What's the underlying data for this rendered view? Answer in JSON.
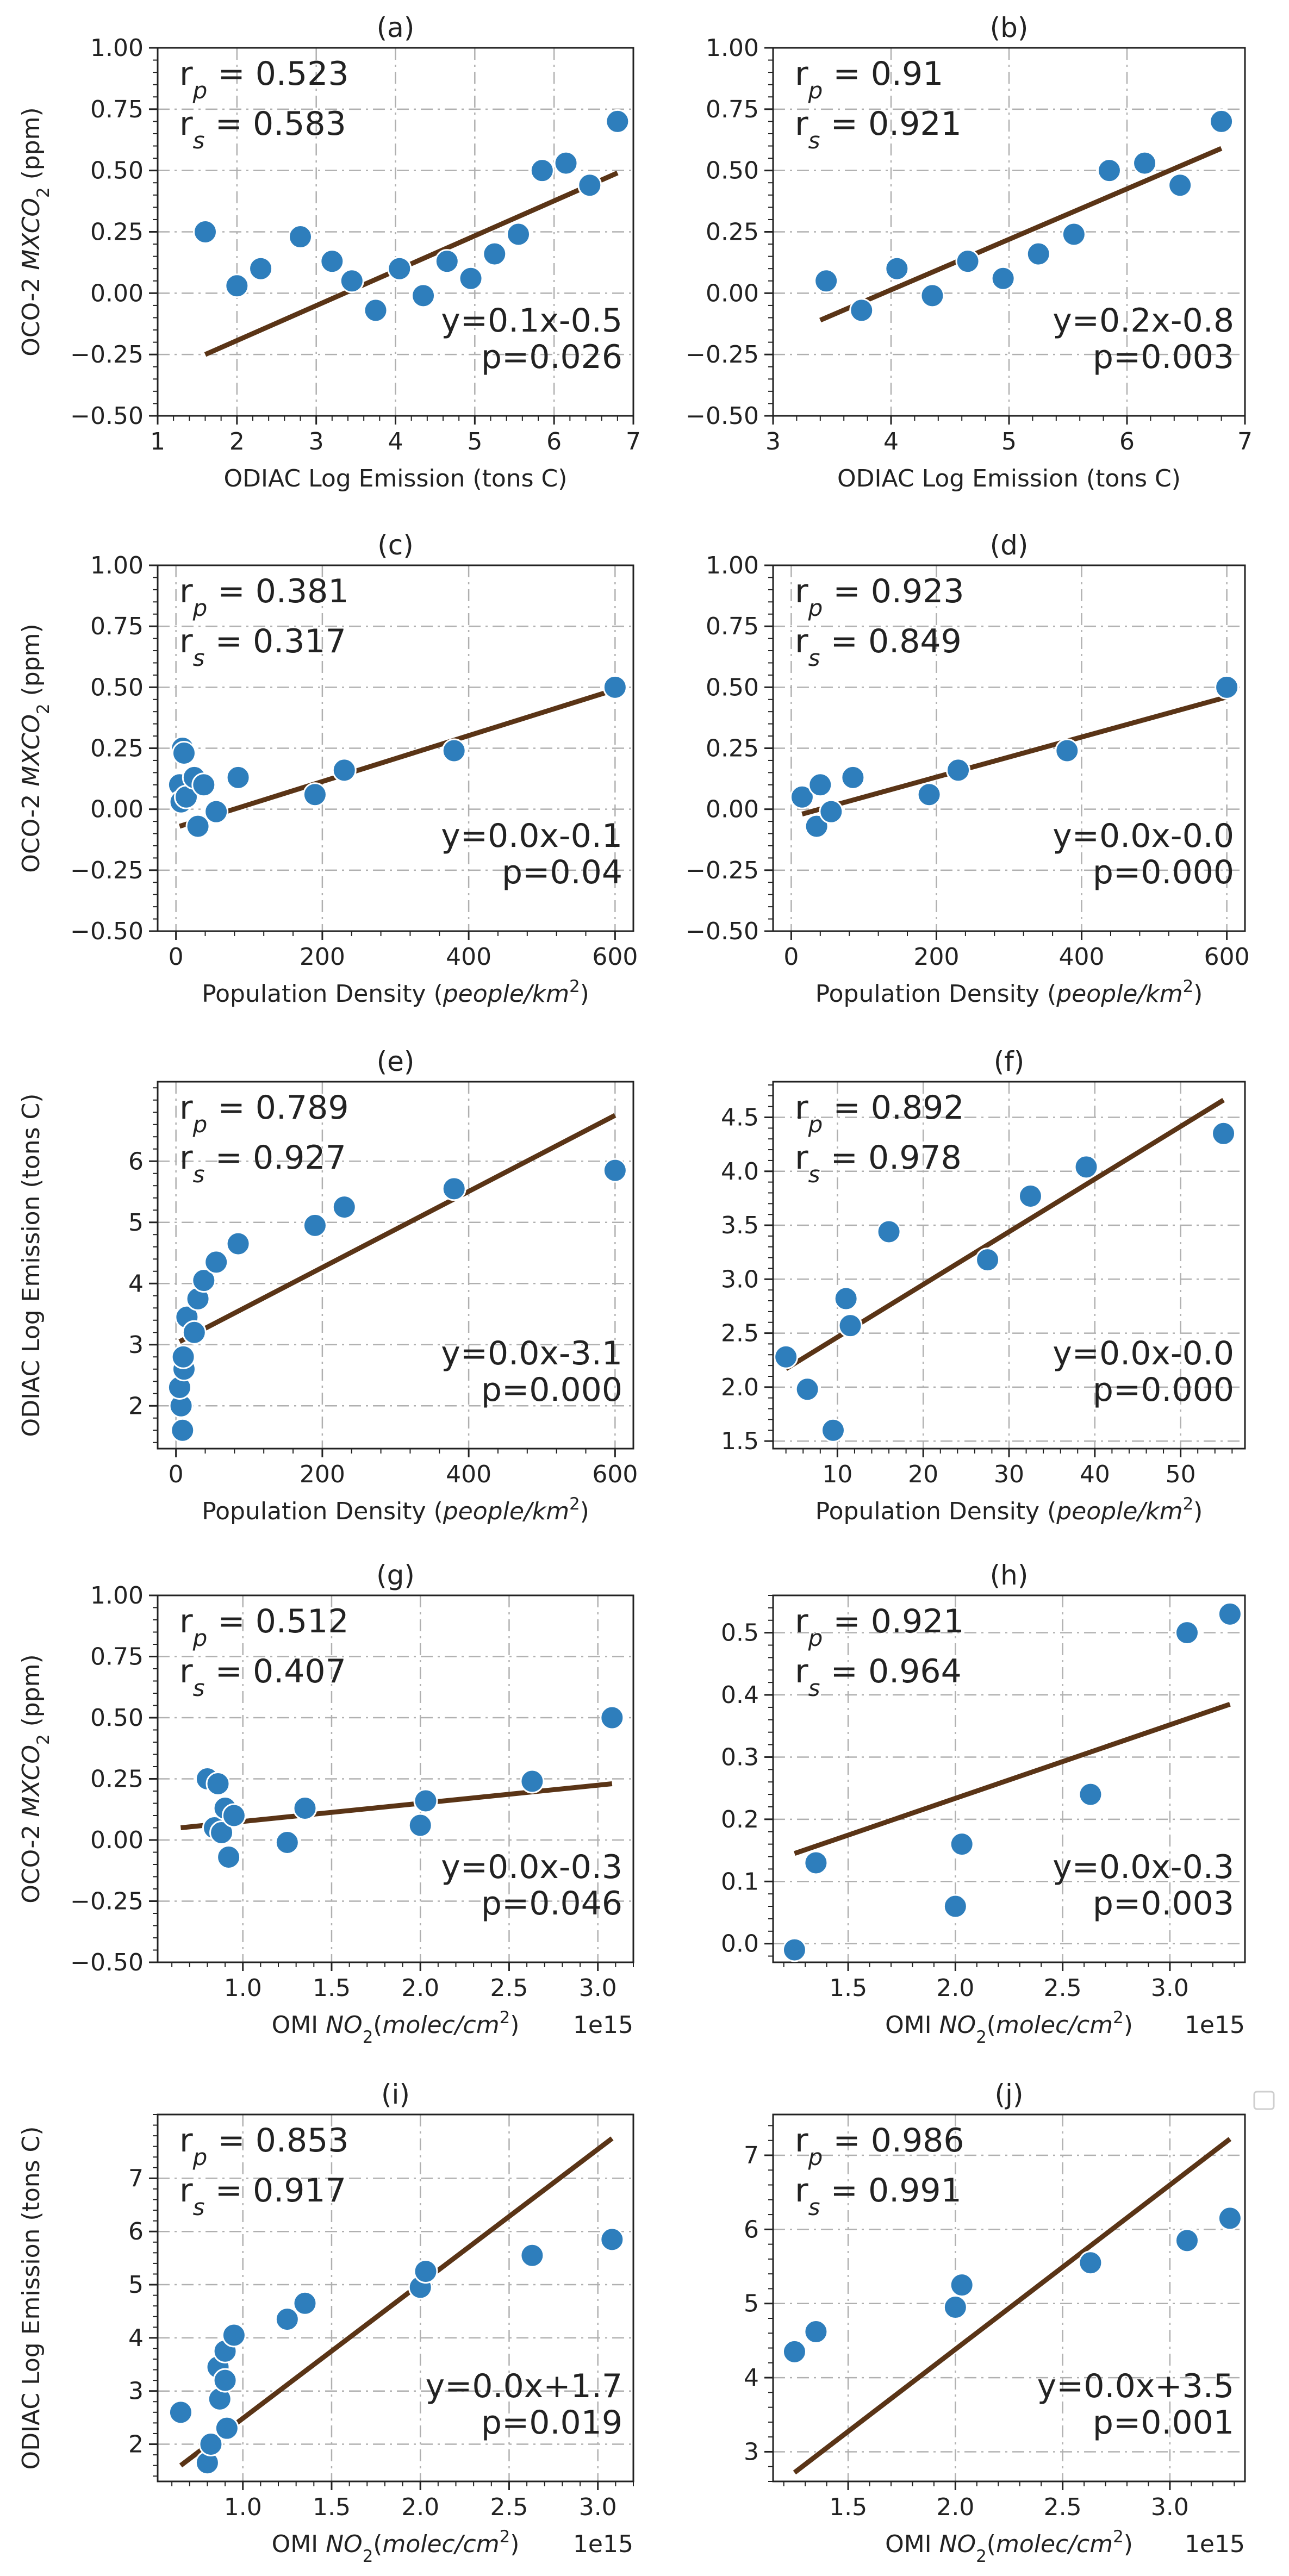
{
  "figure": {
    "legend_box": true
  },
  "chart_data": [
    {
      "panel": "(a)",
      "type": "scatter",
      "xlabel": "ODIAC Log Emission (tons C)",
      "ylabel": "OCO-2 MXCO2 (ppm)",
      "xlim": [
        1,
        7
      ],
      "ylim": [
        -0.5,
        1.0
      ],
      "xticks": [
        1,
        2,
        3,
        4,
        5,
        6,
        7
      ],
      "xticklabels": [
        "1",
        "2",
        "3",
        "4",
        "5",
        "6",
        "7"
      ],
      "yticks": [
        -0.5,
        -0.25,
        0,
        0.25,
        0.5,
        0.75,
        1.0
      ],
      "yticklabels": [
        "−0.50",
        "−0.25",
        "0.00",
        "0.25",
        "0.50",
        "0.75",
        "1.00"
      ],
      "x_exponent": "",
      "points": [
        [
          1.6,
          0.25
        ],
        [
          2.0,
          0.03
        ],
        [
          2.3,
          0.1
        ],
        [
          2.8,
          0.23
        ],
        [
          3.2,
          0.13
        ],
        [
          3.45,
          0.05
        ],
        [
          3.75,
          -0.07
        ],
        [
          4.05,
          0.1
        ],
        [
          4.35,
          -0.01
        ],
        [
          4.65,
          0.13
        ],
        [
          4.95,
          0.06
        ],
        [
          5.25,
          0.16
        ],
        [
          5.55,
          0.24
        ],
        [
          5.85,
          0.5
        ],
        [
          6.15,
          0.53
        ],
        [
          6.45,
          0.44
        ],
        [
          6.8,
          0.7
        ]
      ],
      "fit": [
        [
          1.6,
          -0.25
        ],
        [
          6.8,
          0.49
        ]
      ],
      "stats": {
        "rp": "r_p = 0.523",
        "rs": "r_s = 0.583"
      },
      "equation": {
        "eq": "y=0.1x-0.5",
        "p": "p=0.026"
      }
    },
    {
      "panel": "(b)",
      "type": "scatter",
      "xlabel": "ODIAC Log Emission (tons C)",
      "ylabel": "",
      "xlim": [
        3,
        7
      ],
      "ylim": [
        -0.5,
        1.0
      ],
      "xticks": [
        3,
        4,
        5,
        6,
        7
      ],
      "xticklabels": [
        "3",
        "4",
        "5",
        "6",
        "7"
      ],
      "yticks": [
        -0.5,
        -0.25,
        0,
        0.25,
        0.5,
        0.75,
        1.0
      ],
      "yticklabels": [
        "−0.50",
        "−0.25",
        "0.00",
        "0.25",
        "0.50",
        "0.75",
        "1.00"
      ],
      "x_exponent": "",
      "points": [
        [
          3.45,
          0.05
        ],
        [
          3.75,
          -0.07
        ],
        [
          4.05,
          0.1
        ],
        [
          4.35,
          -0.01
        ],
        [
          4.65,
          0.13
        ],
        [
          4.95,
          0.06
        ],
        [
          5.25,
          0.16
        ],
        [
          5.55,
          0.24
        ],
        [
          5.85,
          0.5
        ],
        [
          6.15,
          0.53
        ],
        [
          6.45,
          0.44
        ],
        [
          6.8,
          0.7
        ]
      ],
      "fit": [
        [
          3.4,
          -0.11
        ],
        [
          6.8,
          0.59
        ]
      ],
      "stats": {
        "rp": "r_p = 0.91",
        "rs": "r_s = 0.921"
      },
      "equation": {
        "eq": "y=0.2x-0.8",
        "p": "p=0.003"
      }
    },
    {
      "panel": "(c)",
      "type": "scatter",
      "xlabel": "Population Density (people/km²)",
      "ylabel": "OCO-2 MXCO2 (ppm)",
      "xlim": [
        -25,
        625
      ],
      "ylim": [
        -0.5,
        1.0
      ],
      "xticks": [
        0,
        200,
        400,
        600
      ],
      "xticklabels": [
        "0",
        "200",
        "400",
        "600"
      ],
      "yticks": [
        -0.5,
        -0.25,
        0,
        0.25,
        0.5,
        0.75,
        1.0
      ],
      "yticklabels": [
        "−0.50",
        "−0.25",
        "0.00",
        "0.25",
        "0.50",
        "0.75",
        "1.00"
      ],
      "x_exponent": "",
      "points": [
        [
          5,
          0.1
        ],
        [
          7,
          0.03
        ],
        [
          9,
          0.25
        ],
        [
          11,
          0.23
        ],
        [
          14,
          0.05
        ],
        [
          25,
          0.13
        ],
        [
          30,
          -0.07
        ],
        [
          38,
          0.1
        ],
        [
          55,
          -0.01
        ],
        [
          85,
          0.13
        ],
        [
          190,
          0.06
        ],
        [
          230,
          0.16
        ],
        [
          380,
          0.24
        ],
        [
          600,
          0.5
        ]
      ],
      "fit": [
        [
          5,
          -0.07
        ],
        [
          600,
          0.49
        ]
      ],
      "stats": {
        "rp": "r_p = 0.381",
        "rs": "r_s = 0.317"
      },
      "equation": {
        "eq": "y=0.0x-0.1",
        "p": "p=0.04"
      }
    },
    {
      "panel": "(d)",
      "type": "scatter",
      "xlabel": "Population Density (people/km²)",
      "ylabel": "",
      "xlim": [
        -25,
        625
      ],
      "ylim": [
        -0.5,
        1.0
      ],
      "xticks": [
        0,
        200,
        400,
        600
      ],
      "xticklabels": [
        "0",
        "200",
        "400",
        "600"
      ],
      "yticks": [
        -0.5,
        -0.25,
        0,
        0.25,
        0.5,
        0.75,
        1.0
      ],
      "yticklabels": [
        "−0.50",
        "−0.25",
        "0.00",
        "0.25",
        "0.50",
        "0.75",
        "1.00"
      ],
      "x_exponent": "",
      "points": [
        [
          15,
          0.05
        ],
        [
          35,
          -0.07
        ],
        [
          40,
          0.1
        ],
        [
          55,
          -0.01
        ],
        [
          85,
          0.13
        ],
        [
          190,
          0.06
        ],
        [
          230,
          0.16
        ],
        [
          380,
          0.24
        ],
        [
          600,
          0.5
        ]
      ],
      "fit": [
        [
          15,
          -0.02
        ],
        [
          600,
          0.46
        ]
      ],
      "stats": {
        "rp": "r_p = 0.923",
        "rs": "r_s = 0.849"
      },
      "equation": {
        "eq": "y=0.0x-0.0",
        "p": "p=0.000"
      }
    },
    {
      "panel": "(e)",
      "type": "scatter",
      "xlabel": "Population Density (people/km²)",
      "ylabel": "ODIAC Log Emission (tons C)",
      "xlim": [
        -25,
        625
      ],
      "ylim": [
        1.3,
        7.3
      ],
      "xticks": [
        0,
        200,
        400,
        600
      ],
      "xticklabels": [
        "0",
        "200",
        "400",
        "600"
      ],
      "yticks": [
        2,
        3,
        4,
        5,
        6
      ],
      "yticklabels": [
        "2",
        "3",
        "4",
        "5",
        "6"
      ],
      "x_exponent": "",
      "points": [
        [
          9,
          1.6
        ],
        [
          7,
          2.0
        ],
        [
          5,
          2.3
        ],
        [
          11,
          2.6
        ],
        [
          10,
          2.8
        ],
        [
          15,
          3.45
        ],
        [
          25,
          3.2
        ],
        [
          30,
          3.75
        ],
        [
          38,
          4.05
        ],
        [
          55,
          4.35
        ],
        [
          85,
          4.65
        ],
        [
          190,
          4.95
        ],
        [
          230,
          5.25
        ],
        [
          380,
          5.55
        ],
        [
          600,
          5.85
        ]
      ],
      "fit": [
        [
          5,
          3.05
        ],
        [
          600,
          6.75
        ]
      ],
      "stats": {
        "rp": "r_p = 0.789",
        "rs": "r_s = 0.927"
      },
      "equation": {
        "eq": "y=0.0x-3.1",
        "p": "p=0.000"
      }
    },
    {
      "panel": "(f)",
      "type": "scatter",
      "xlabel": "Population Density (people/km²)",
      "ylabel": "",
      "xlim": [
        2.5,
        57.5
      ],
      "ylim": [
        1.43,
        4.83
      ],
      "xticks": [
        10,
        20,
        30,
        40,
        50
      ],
      "xticklabels": [
        "10",
        "20",
        "30",
        "40",
        "50"
      ],
      "yticks": [
        1.5,
        2.0,
        2.5,
        3.0,
        3.5,
        4.0,
        4.5
      ],
      "yticklabels": [
        "1.5",
        "2.0",
        "2.5",
        "3.0",
        "3.5",
        "4.0",
        "4.5"
      ],
      "x_exponent": "",
      "points": [
        [
          4,
          2.28
        ],
        [
          6.5,
          1.98
        ],
        [
          9.5,
          1.6
        ],
        [
          11,
          2.82
        ],
        [
          11.5,
          2.57
        ],
        [
          16,
          3.44
        ],
        [
          27.5,
          3.18
        ],
        [
          32.5,
          3.77
        ],
        [
          39,
          4.04
        ],
        [
          55,
          4.35
        ]
      ],
      "fit": [
        [
          4,
          2.17
        ],
        [
          55,
          4.66
        ]
      ],
      "stats": {
        "rp": "r_p = 0.892",
        "rs": "r_s = 0.978"
      },
      "equation": {
        "eq": "y=0.0x-0.0",
        "p": "p=0.000"
      }
    },
    {
      "panel": "(g)",
      "type": "scatter",
      "xlabel": "OMI NO2(molec/cm²)",
      "ylabel": "OCO-2 MXCO2 (ppm)",
      "xlim": [
        0.52,
        3.2
      ],
      "ylim": [
        -0.5,
        1.0
      ],
      "xticks": [
        1.0,
        1.5,
        2.0,
        2.5,
        3.0
      ],
      "xticklabels": [
        "1.0",
        "1.5",
        "2.0",
        "2.5",
        "3.0"
      ],
      "yticks": [
        -0.5,
        -0.25,
        0,
        0.25,
        0.5,
        0.75,
        1.0
      ],
      "yticklabels": [
        "−0.50",
        "−0.25",
        "0.00",
        "0.25",
        "0.50",
        "0.75",
        "1.00"
      ],
      "x_exponent": "1e15",
      "points": [
        [
          0.8,
          0.25
        ],
        [
          0.84,
          0.05
        ],
        [
          0.86,
          0.23
        ],
        [
          0.88,
          0.03
        ],
        [
          0.9,
          0.13
        ],
        [
          0.92,
          -0.07
        ],
        [
          0.95,
          0.1
        ],
        [
          1.25,
          -0.01
        ],
        [
          1.35,
          0.13
        ],
        [
          2.0,
          0.06
        ],
        [
          2.03,
          0.16
        ],
        [
          2.63,
          0.24
        ],
        [
          3.08,
          0.5
        ]
      ],
      "fit": [
        [
          0.65,
          0.05
        ],
        [
          3.08,
          0.23
        ]
      ],
      "stats": {
        "rp": "r_p = 0.512",
        "rs": "r_s = 0.407"
      },
      "equation": {
        "eq": "y=0.0x-0.3",
        "p": "p=0.046"
      }
    },
    {
      "panel": "(h)",
      "type": "scatter",
      "xlabel": "OMI NO2(molec/cm²)",
      "ylabel": "",
      "xlim": [
        1.15,
        3.35
      ],
      "ylim": [
        -0.03,
        0.56
      ],
      "xticks": [
        1.5,
        2.0,
        2.5,
        3.0
      ],
      "xticklabels": [
        "1.5",
        "2.0",
        "2.5",
        "3.0"
      ],
      "yticks": [
        0.0,
        0.1,
        0.2,
        0.3,
        0.4,
        0.5
      ],
      "yticklabels": [
        "0.0",
        "0.1",
        "0.2",
        "0.3",
        "0.4",
        "0.5"
      ],
      "x_exponent": "1e15",
      "points": [
        [
          1.25,
          -0.01
        ],
        [
          1.35,
          0.13
        ],
        [
          2.0,
          0.06
        ],
        [
          2.03,
          0.16
        ],
        [
          2.63,
          0.24
        ],
        [
          3.08,
          0.5
        ],
        [
          3.28,
          0.53
        ]
      ],
      "fit": [
        [
          1.25,
          0.145
        ],
        [
          3.28,
          0.385
        ]
      ],
      "stats": {
        "rp": "r_p = 0.921",
        "rs": "r_s = 0.964"
      },
      "equation": {
        "eq": "y=0.0x-0.3",
        "p": "p=0.003"
      }
    },
    {
      "panel": "(i)",
      "type": "scatter",
      "xlabel": "OMI NO2(molec/cm²)",
      "ylabel": "ODIAC Log Emission (tons C)",
      "xlim": [
        0.52,
        3.2
      ],
      "ylim": [
        1.3,
        8.2
      ],
      "xticks": [
        1.0,
        1.5,
        2.0,
        2.5,
        3.0
      ],
      "xticklabels": [
        "1.0",
        "1.5",
        "2.0",
        "2.5",
        "3.0"
      ],
      "yticks": [
        2,
        3,
        4,
        5,
        6,
        7
      ],
      "yticklabels": [
        "2",
        "3",
        "4",
        "5",
        "6",
        "7"
      ],
      "x_exponent": "1e15",
      "points": [
        [
          0.65,
          2.6
        ],
        [
          0.8,
          1.65
        ],
        [
          0.82,
          2.0
        ],
        [
          0.86,
          3.45
        ],
        [
          0.87,
          2.85
        ],
        [
          0.9,
          3.2
        ],
        [
          0.91,
          2.3
        ],
        [
          0.9,
          3.75
        ],
        [
          0.95,
          4.05
        ],
        [
          1.25,
          4.35
        ],
        [
          1.35,
          4.65
        ],
        [
          2.0,
          4.95
        ],
        [
          2.03,
          5.25
        ],
        [
          2.63,
          5.55
        ],
        [
          3.08,
          5.85
        ]
      ],
      "fit": [
        [
          0.65,
          1.6
        ],
        [
          3.08,
          7.75
        ]
      ],
      "stats": {
        "rp": "r_p = 0.853",
        "rs": "r_s = 0.917"
      },
      "equation": {
        "eq": "y=0.0x+1.7",
        "p": "p=0.019"
      }
    },
    {
      "panel": "(j)",
      "type": "scatter",
      "xlabel": "OMI NO2(molec/cm²)",
      "ylabel": "",
      "xlim": [
        1.15,
        3.35
      ],
      "ylim": [
        2.6,
        7.55
      ],
      "xticks": [
        1.5,
        2.0,
        2.5,
        3.0
      ],
      "xticklabels": [
        "1.5",
        "2.0",
        "2.5",
        "3.0"
      ],
      "yticks": [
        3,
        4,
        5,
        6,
        7
      ],
      "yticklabels": [
        "3",
        "4",
        "5",
        "6",
        "7"
      ],
      "x_exponent": "1e15",
      "points": [
        [
          1.25,
          4.35
        ],
        [
          1.35,
          4.62
        ],
        [
          2.0,
          4.95
        ],
        [
          2.03,
          5.25
        ],
        [
          2.63,
          5.55
        ],
        [
          3.08,
          5.85
        ],
        [
          3.28,
          6.15
        ]
      ],
      "fit": [
        [
          1.25,
          2.72
        ],
        [
          3.28,
          7.22
        ]
      ],
      "stats": {
        "rp": "r_p = 0.986",
        "rs": "r_s = 0.991"
      },
      "equation": {
        "eq": "y=0.0x+3.5",
        "p": "p=0.001"
      }
    }
  ]
}
